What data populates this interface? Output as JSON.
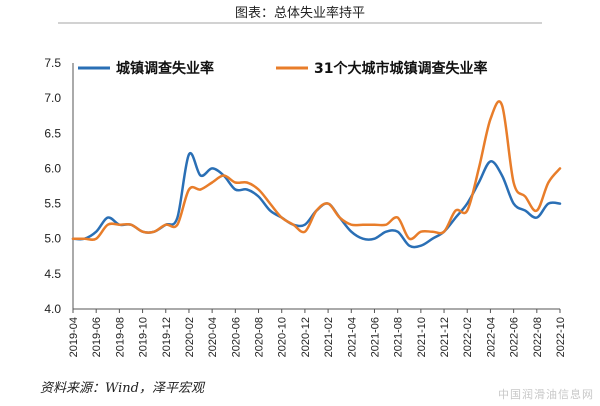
{
  "chart_data": {
    "type": "line",
    "title": "图表：总体失业率持平",
    "source": "资料来源：Wind，泽平宏观",
    "ylim": [
      4.0,
      7.5
    ],
    "yticks": [
      "7.5",
      "7.0",
      "6.5",
      "6.0",
      "5.5",
      "5.0",
      "4.5",
      "4.0"
    ],
    "ytick_values": [
      7.5,
      7.0,
      6.5,
      6.0,
      5.5,
      5.0,
      4.5,
      4.0
    ],
    "x_tick_labels": [
      "2019-04",
      "2019-06",
      "2019-08",
      "2019-10",
      "2019-12",
      "2020-02",
      "2020-04",
      "2020-06",
      "2020-08",
      "2020-10",
      "2020-12",
      "2021-02",
      "2021-04",
      "2021-06",
      "2021-08",
      "2021-10",
      "2021-12",
      "2022-02",
      "2022-04",
      "2022-06",
      "2022-08",
      "2022-10"
    ],
    "x": [
      "2019-04",
      "2019-05",
      "2019-06",
      "2019-07",
      "2019-08",
      "2019-09",
      "2019-10",
      "2019-11",
      "2019-12",
      "2020-01",
      "2020-02",
      "2020-03",
      "2020-04",
      "2020-05",
      "2020-06",
      "2020-07",
      "2020-08",
      "2020-09",
      "2020-10",
      "2020-11",
      "2020-12",
      "2021-01",
      "2021-02",
      "2021-03",
      "2021-04",
      "2021-05",
      "2021-06",
      "2021-07",
      "2021-08",
      "2021-09",
      "2021-10",
      "2021-11",
      "2021-12",
      "2022-01",
      "2022-02",
      "2022-03",
      "2022-04",
      "2022-05",
      "2022-06",
      "2022-07",
      "2022-08",
      "2022-09",
      "2022-10"
    ],
    "legend_position": "top",
    "grid": false,
    "series": [
      {
        "name": "城镇调查失业率",
        "color": "#2a6fb5",
        "values": [
          5.0,
          5.0,
          5.1,
          5.3,
          5.2,
          5.2,
          5.1,
          5.1,
          5.2,
          5.3,
          6.2,
          5.9,
          6.0,
          5.9,
          5.7,
          5.7,
          5.6,
          5.4,
          5.3,
          5.2,
          5.2,
          5.4,
          5.5,
          5.3,
          5.1,
          5.0,
          5.0,
          5.1,
          5.1,
          4.9,
          4.9,
          5.0,
          5.1,
          5.3,
          5.5,
          5.8,
          6.1,
          5.9,
          5.5,
          5.4,
          5.3,
          5.5,
          5.5
        ]
      },
      {
        "name": "31个大城市城镇调查失业率",
        "color": "#e87d2a",
        "values": [
          5.0,
          5.0,
          5.0,
          5.2,
          5.2,
          5.2,
          5.1,
          5.1,
          5.2,
          5.2,
          5.7,
          5.7,
          5.8,
          5.9,
          5.8,
          5.8,
          5.7,
          5.5,
          5.3,
          5.2,
          5.1,
          5.4,
          5.5,
          5.3,
          5.2,
          5.2,
          5.2,
          5.2,
          5.3,
          5.0,
          5.1,
          5.1,
          5.1,
          5.4,
          5.4,
          6.0,
          6.7,
          6.9,
          5.8,
          5.6,
          5.4,
          5.8,
          6.0
        ]
      }
    ]
  },
  "watermark": "中国润滑油信息网"
}
